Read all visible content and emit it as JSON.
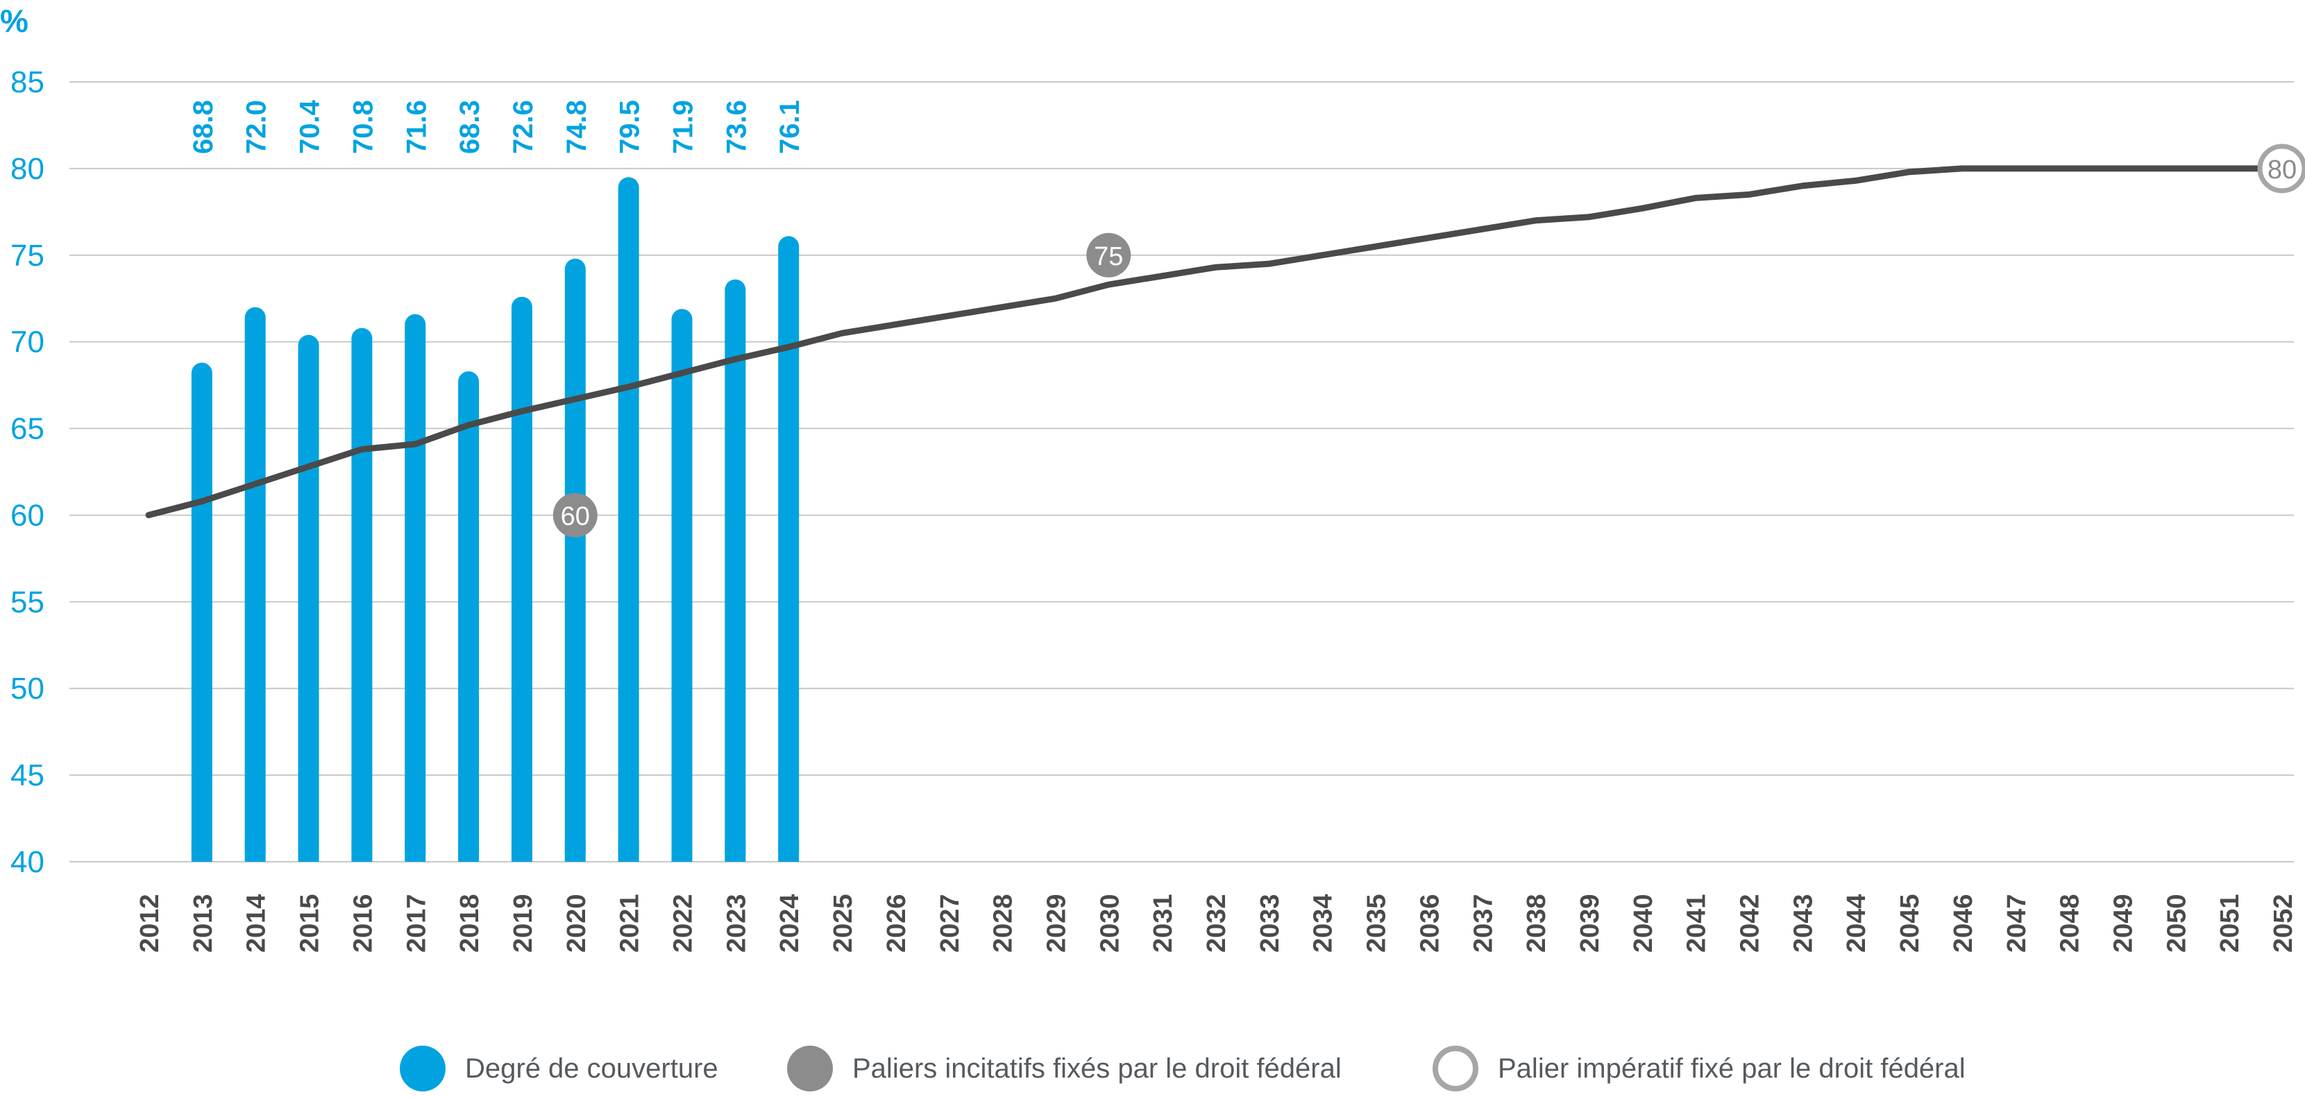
{
  "colors": {
    "bar": "#00a3e0",
    "line": "#4a4a4a",
    "marker_fill": "#8c8c8c",
    "marker_ring": "#a6a6a6",
    "grid": "#c8c8c8",
    "axis_text": "#00a3e0",
    "year_text": "#4a4a4a"
  },
  "legend": {
    "coverage": "Degré de couverture",
    "incentive": "Paliers incitatifs fixés par le droit fédéral",
    "mandatory": "Palier impératif fixé par le droit fédéral"
  },
  "chart_data": {
    "type": "bar",
    "title": "",
    "ylabel": "%",
    "xlabel": "",
    "ylim": [
      40,
      85
    ],
    "yticks": [
      40,
      45,
      50,
      55,
      60,
      65,
      70,
      75,
      80,
      85
    ],
    "grid": true,
    "legend_position": "bottom",
    "x_years": [
      2012,
      2013,
      2014,
      2015,
      2016,
      2017,
      2018,
      2019,
      2020,
      2021,
      2022,
      2023,
      2024,
      2025,
      2026,
      2027,
      2028,
      2029,
      2030,
      2031,
      2032,
      2033,
      2034,
      2035,
      2036,
      2037,
      2038,
      2039,
      2040,
      2041,
      2042,
      2043,
      2044,
      2045,
      2046,
      2047,
      2048,
      2049,
      2050,
      2051,
      2052
    ],
    "series": [
      {
        "name": "Degré de couverture",
        "type": "bar",
        "categories": [
          2013,
          2014,
          2015,
          2016,
          2017,
          2018,
          2019,
          2020,
          2021,
          2022,
          2023,
          2024
        ],
        "values": [
          68.8,
          72.0,
          70.4,
          70.8,
          71.6,
          68.3,
          72.6,
          74.8,
          79.5,
          71.9,
          73.6,
          76.1
        ],
        "labels": [
          "68.8",
          "72.0",
          "70.4",
          "70.8",
          "71.6",
          "68.3",
          "72.6",
          "74.8",
          "79.5",
          "71.9",
          "73.6",
          "76.1"
        ]
      },
      {
        "type": "line",
        "x": [
          2012,
          2013,
          2014,
          2015,
          2016,
          2017,
          2018,
          2019,
          2020,
          2021,
          2022,
          2023,
          2024,
          2025,
          2026,
          2027,
          2028,
          2029,
          2030,
          2031,
          2032,
          2033,
          2034,
          2035,
          2036,
          2037,
          2038,
          2039,
          2040,
          2041,
          2042,
          2043,
          2044,
          2045,
          2046,
          2047,
          2048,
          2049,
          2050,
          2051,
          2052
        ],
        "values": [
          60.0,
          60.8,
          61.8,
          62.8,
          63.8,
          64.1,
          65.2,
          66.0,
          66.7,
          67.4,
          68.2,
          69.0,
          69.7,
          70.5,
          71.0,
          71.5,
          72.0,
          72.5,
          73.3,
          73.8,
          74.3,
          74.5,
          75.0,
          75.5,
          76.0,
          76.5,
          77.0,
          77.2,
          77.7,
          78.3,
          78.5,
          79.0,
          79.3,
          79.8,
          80.0,
          80.0,
          80.0,
          80.0,
          80.0,
          80.0,
          80.0
        ]
      }
    ],
    "markers": [
      {
        "name": "Paliers incitatifs fixés par le droit fédéral",
        "style": "filled",
        "points": [
          {
            "x": 2020,
            "y": 60,
            "label": "60"
          },
          {
            "x": 2030,
            "y": 75,
            "label": "75"
          }
        ]
      },
      {
        "name": "Palier impératif fixé par le droit fédéral",
        "style": "ring",
        "points": [
          {
            "x": 2052,
            "y": 80,
            "label": "80"
          }
        ]
      }
    ]
  }
}
